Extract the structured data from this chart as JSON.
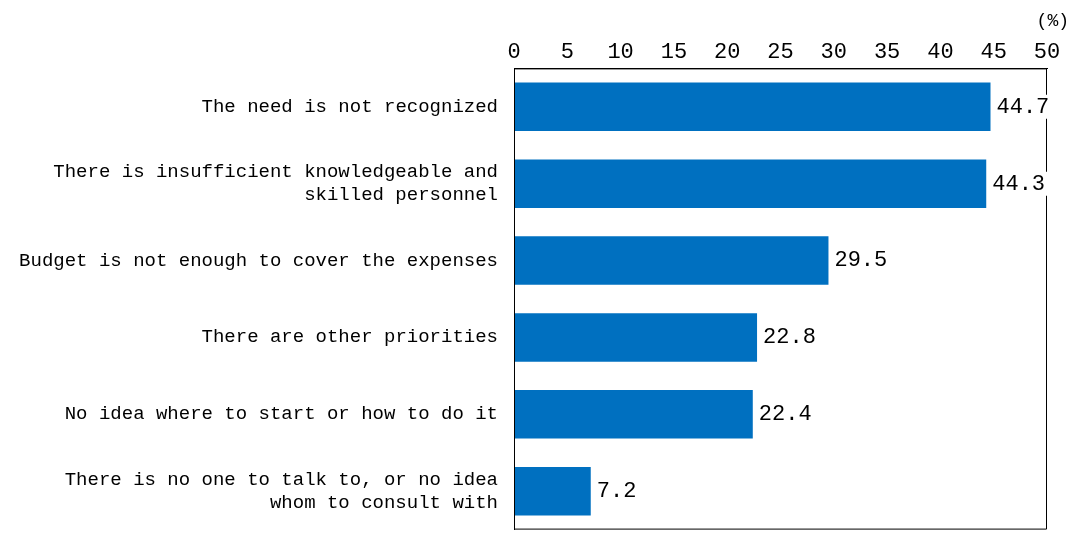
{
  "chart_data": {
    "type": "bar",
    "orientation": "horizontal",
    "categories": [
      "The need is not recognized",
      "There is insufficient knowledgeable and skilled personnel",
      "Budget is not enough to cover the expenses",
      "There are other priorities",
      "No idea where to start or how to do it",
      "There is no one to talk to, or no idea whom to consult with"
    ],
    "values": [
      44.7,
      44.3,
      29.5,
      22.8,
      22.4,
      7.2
    ],
    "color": "#0070c0",
    "xlim": [
      0,
      50
    ],
    "xticks": [
      0,
      5,
      10,
      15,
      20,
      25,
      30,
      35,
      40,
      45,
      50
    ],
    "grid": false,
    "legend": false,
    "data_labels": true,
    "annotations": [
      "(%)"
    ]
  }
}
